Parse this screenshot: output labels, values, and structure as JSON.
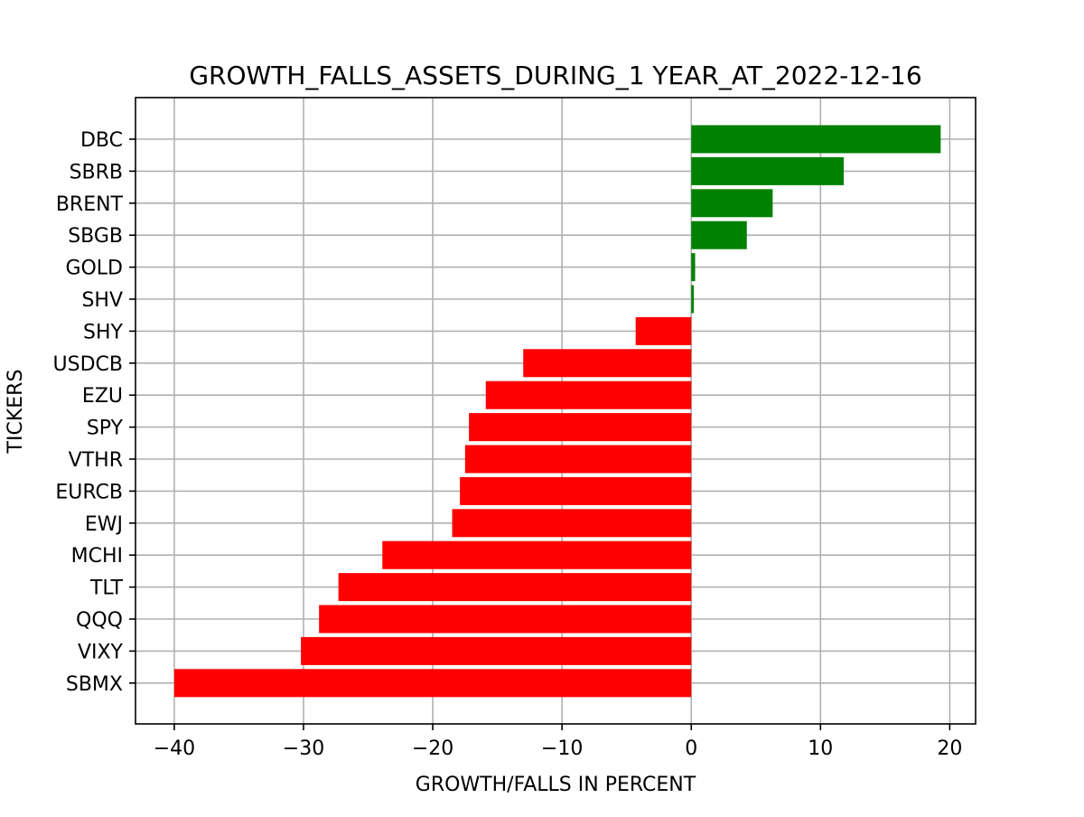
{
  "chart_data": {
    "type": "bar",
    "orientation": "horizontal",
    "title": "GROWTH_FALLS_ASSETS_DURING_1 YEAR_AT_2022-12-16",
    "xlabel": "GROWTH/FALLS IN PERCENT",
    "ylabel": "TICKERS",
    "xlim": [
      -43,
      22
    ],
    "xticks": [
      -40,
      -30,
      -20,
      -10,
      0,
      10,
      20
    ],
    "xtick_labels": [
      "−40",
      "−30",
      "−20",
      "−10",
      "0",
      "10",
      "20"
    ],
    "grid": true,
    "categories": [
      "DBC",
      "SBRB",
      "BRENT",
      "SBGB",
      "GOLD",
      "SHV",
      "SHY",
      "USDCB",
      "EZU",
      "SPY",
      "VTHR",
      "EURCB",
      "EWJ",
      "MCHI",
      "TLT",
      "QQQ",
      "VIXY",
      "SBMX"
    ],
    "values": [
      19.3,
      11.8,
      6.3,
      4.3,
      0.3,
      0.2,
      -4.3,
      -13.0,
      -15.9,
      -17.2,
      -17.5,
      -17.9,
      -18.5,
      -23.9,
      -27.3,
      -28.8,
      -30.2,
      -40.0
    ],
    "positive_color": "#008000",
    "negative_color": "#ff0000"
  }
}
